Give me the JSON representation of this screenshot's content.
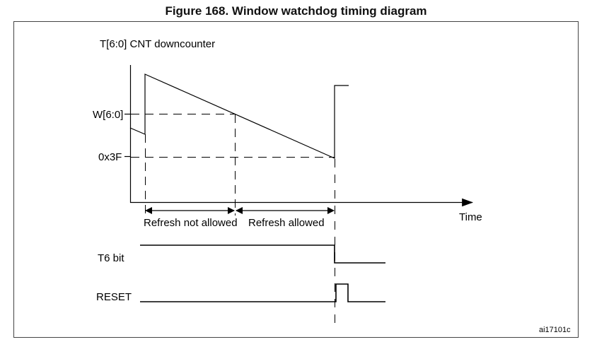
{
  "title": "Figure 168. Window watchdog timing diagram",
  "labels": {
    "counter": "T[6:0] CNT downcounter",
    "window": "W[6:0]",
    "threshold": "0x3F",
    "time": "Time",
    "refresh_not_allowed": "Refresh not allowed",
    "refresh_allowed": "Refresh allowed",
    "t6_bit": "T6 bit",
    "reset": "RESET",
    "figure_id": "ai17101c"
  },
  "colors": {
    "stroke": "#000000",
    "text": "#000000",
    "frame": "#444444"
  }
}
